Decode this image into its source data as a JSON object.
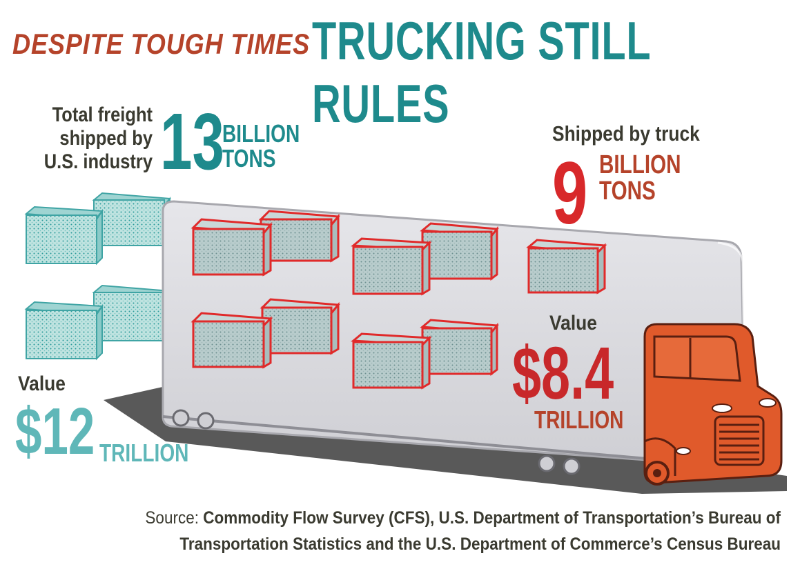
{
  "header": {
    "kicker": "DESPITE TOUGH TIMES",
    "headline": "TRUCKING STILL RULES"
  },
  "total_freight": {
    "label_lines": [
      "Total freight",
      "shipped by",
      "U.S. industry"
    ],
    "amount": "13",
    "unit_lines": [
      "BILLION",
      "TONS"
    ]
  },
  "truck_freight": {
    "label": "Shipped by truck",
    "amount": "9",
    "unit_lines": [
      "BILLION",
      "TONS"
    ]
  },
  "total_value": {
    "label": "Value",
    "amount": "$12",
    "unit": "TRILLION"
  },
  "truck_value": {
    "label": "Value",
    "amount": "$8.4",
    "unit": "TRILLION"
  },
  "source": {
    "prefix": "Source:",
    "line1": "Commodity Flow Survey (CFS), U.S. Department of Transportation’s Bureau of",
    "line2": "Transportation Statistics and the U.S. Department of Commerce’s Census Bureau"
  },
  "colors": {
    "teal": "#1e8a8c",
    "light_teal": "#5fb7b8",
    "red": "#d8282a",
    "rust": "#b5432a",
    "cab_orange": "#e05a2b",
    "trailer_gray": "#d8d8dc"
  }
}
